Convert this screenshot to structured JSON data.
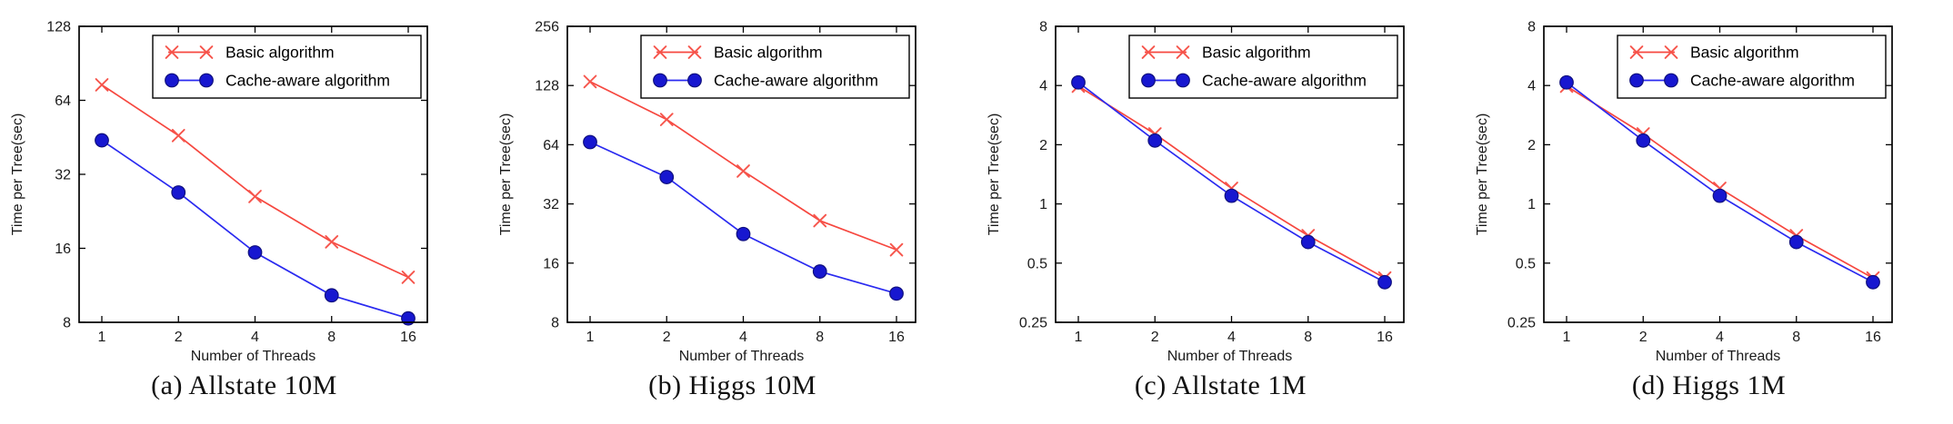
{
  "page": {
    "background": "#ffffff"
  },
  "colors": {
    "basic_line": "#f6473f",
    "basic_marker": "#f6554c",
    "cache_line": "#2a2af0",
    "cache_fill": "#1717d0",
    "cache_edge": "#10107e",
    "axis": "#000000",
    "tick_text": "#1a1a1a",
    "legend_border": "#000000",
    "legend_bg": "#ffffff",
    "caption_text": "#111111"
  },
  "legend": {
    "position": "top-right",
    "entries": [
      {
        "label": "Basic algorithm",
        "marker": "x",
        "color_key": "basic"
      },
      {
        "label": "Cache-aware algorithm",
        "marker": "circle",
        "color_key": "cache"
      }
    ]
  },
  "chart_data": [
    {
      "id": "allstate-10m",
      "type": "line",
      "title": "(a) Allstate 10M",
      "xlabel": "Number of Threads",
      "ylabel": "Time per Tree(sec)",
      "xscale": "log2",
      "yscale": "log2",
      "x": [
        1,
        2,
        4,
        8,
        16
      ],
      "x_tick_labels": [
        "1",
        "2",
        "4",
        "8",
        "16"
      ],
      "ylim": [
        8,
        128
      ],
      "y_ticks": [
        8,
        16,
        32,
        64,
        128
      ],
      "y_tick_labels": [
        "8",
        "16",
        "32",
        "64",
        "128"
      ],
      "grid": false,
      "legend_position": "top-right",
      "series": [
        {
          "name": "Basic algorithm",
          "marker": "x",
          "values": [
            74,
            46,
            26,
            17,
            12.2
          ]
        },
        {
          "name": "Cache-aware algorithm",
          "marker": "circle",
          "values": [
            44,
            27,
            15.4,
            10.3,
            8.3
          ]
        }
      ]
    },
    {
      "id": "higgs-10m",
      "type": "line",
      "title": "(b) Higgs 10M",
      "xlabel": "Number of Threads",
      "ylabel": "Time per Tree(sec)",
      "xscale": "log2",
      "yscale": "log2",
      "x": [
        1,
        2,
        4,
        8,
        16
      ],
      "x_tick_labels": [
        "1",
        "2",
        "4",
        "8",
        "16"
      ],
      "ylim": [
        8,
        256
      ],
      "y_ticks": [
        8,
        16,
        32,
        64,
        128,
        256
      ],
      "y_tick_labels": [
        "8",
        "16",
        "32",
        "64",
        "128",
        "256"
      ],
      "grid": false,
      "legend_position": "top-right",
      "series": [
        {
          "name": "Basic algorithm",
          "marker": "x",
          "values": [
            134,
            86,
            47,
            26.3,
            18.7
          ]
        },
        {
          "name": "Cache-aware algorithm",
          "marker": "circle",
          "values": [
            66,
            43.8,
            22.5,
            14.5,
            11.2
          ]
        }
      ]
    },
    {
      "id": "allstate-1m",
      "type": "line",
      "title": "(c) Allstate 1M",
      "xlabel": "Number of Threads",
      "ylabel": "Time per Tree(sec)",
      "xscale": "log2",
      "yscale": "log2",
      "x": [
        1,
        2,
        4,
        8,
        16
      ],
      "x_tick_labels": [
        "1",
        "2",
        "4",
        "8",
        "16"
      ],
      "ylim": [
        0.25,
        8
      ],
      "y_ticks": [
        0.25,
        0.5,
        1,
        2,
        4,
        8
      ],
      "y_tick_labels": [
        "0.25",
        "0.5",
        "1",
        "2",
        "4",
        "8"
      ],
      "grid": false,
      "legend_position": "top-right",
      "series": [
        {
          "name": "Basic algorithm",
          "marker": "x",
          "values": [
            3.97,
            2.27,
            1.2,
            0.69,
            0.42
          ]
        },
        {
          "name": "Cache-aware algorithm",
          "marker": "circle",
          "values": [
            4.15,
            2.1,
            1.1,
            0.64,
            0.4
          ]
        }
      ]
    },
    {
      "id": "higgs-1m",
      "type": "line",
      "title": "(d) Higgs 1M",
      "xlabel": "Number of Threads",
      "ylabel": "Time per Tree(sec)",
      "xscale": "log2",
      "yscale": "log2",
      "x": [
        1,
        2,
        4,
        8,
        16
      ],
      "x_tick_labels": [
        "1",
        "2",
        "4",
        "8",
        "16"
      ],
      "ylim": [
        0.25,
        8
      ],
      "y_ticks": [
        0.25,
        0.5,
        1,
        2,
        4,
        8
      ],
      "y_tick_labels": [
        "0.25",
        "0.5",
        "1",
        "2",
        "4",
        "8"
      ],
      "grid": false,
      "legend_position": "top-right",
      "series": [
        {
          "name": "Basic algorithm",
          "marker": "x",
          "values": [
            3.97,
            2.27,
            1.2,
            0.69,
            0.42
          ]
        },
        {
          "name": "Cache-aware algorithm",
          "marker": "circle",
          "values": [
            4.15,
            2.1,
            1.1,
            0.64,
            0.4
          ]
        }
      ]
    }
  ]
}
